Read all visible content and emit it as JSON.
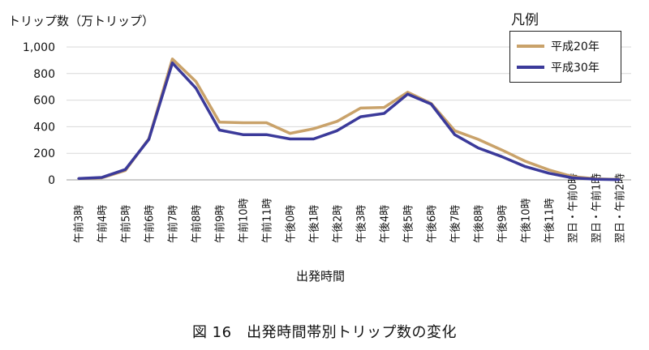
{
  "chart_data": {
    "type": "line",
    "ylabel": "トリップ数（万トリップ）",
    "xlabel": "出発時間",
    "ylim": [
      0,
      1000
    ],
    "yticks": [
      0,
      200,
      400,
      600,
      800,
      1000
    ],
    "ytick_labels": [
      "0",
      "200",
      "400",
      "600",
      "800",
      "1,000"
    ],
    "grid": true,
    "legend_title": "凡例",
    "legend_placement": "top-right",
    "categories": [
      "午前3時",
      "午前4時",
      "午前5時",
      "午前6時",
      "午前7時",
      "午前8時",
      "午前9時",
      "午前10時",
      "午前11時",
      "午後0時",
      "午後1時",
      "午後2時",
      "午後3時",
      "午後4時",
      "午後5時",
      "午後6時",
      "午後7時",
      "午後8時",
      "午後9時",
      "午後10時",
      "午後11時",
      "翌日・午前0時",
      "翌日・午前1時",
      "翌日・午前2時"
    ],
    "series": [
      {
        "name": "平成20年",
        "color": "#C9A26A",
        "values": [
          10,
          15,
          70,
          310,
          910,
          740,
          435,
          430,
          430,
          350,
          385,
          440,
          540,
          545,
          660,
          575,
          370,
          305,
          225,
          140,
          75,
          25,
          8,
          3
        ]
      },
      {
        "name": "平成30年",
        "color": "#3B3A9A",
        "values": [
          10,
          18,
          78,
          305,
          880,
          690,
          375,
          340,
          340,
          308,
          308,
          370,
          475,
          500,
          645,
          570,
          340,
          240,
          175,
          100,
          50,
          15,
          5,
          2
        ]
      }
    ]
  },
  "caption": "図 16　出発時間帯別トリップ数の変化"
}
